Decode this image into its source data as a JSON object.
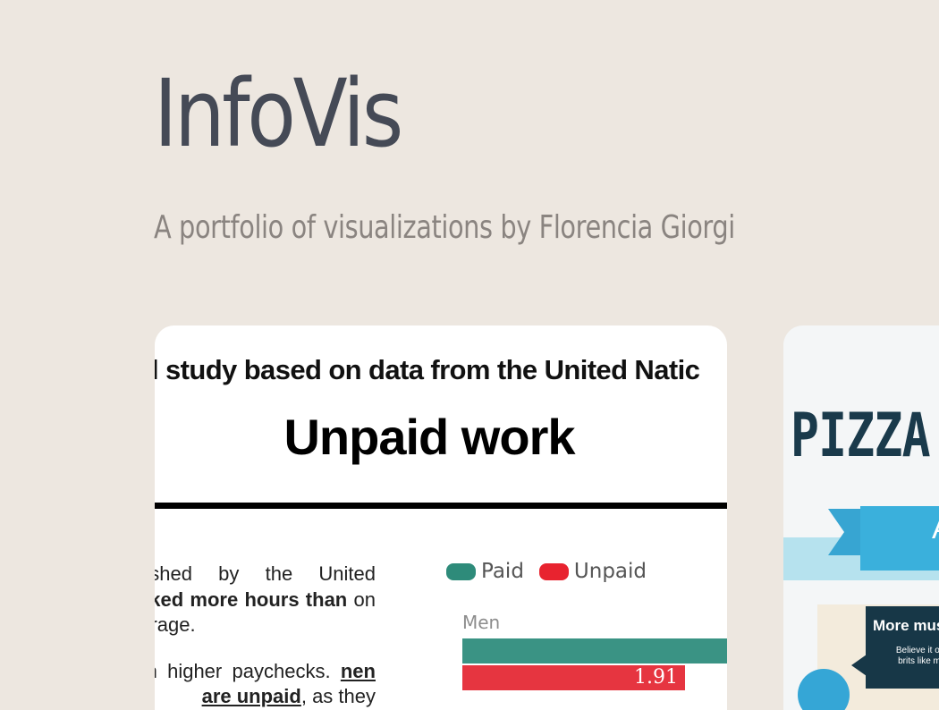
{
  "header": {
    "title": "InfoVis",
    "subtitle": "A portfolio of visualizations by Florencia Giorgi"
  },
  "cards": [
    {
      "banner": "l study based on data from the United Natic",
      "headline": "Unpaid work",
      "body": {
        "line1": "ublished by the United",
        "line2": "vorked more hours than",
        "line3": "on average.",
        "line4": "ıean higher paychecks.",
        "line5_bold": "nen are unpaid",
        "line5_tail": ", as they"
      },
      "chart": {
        "legend": [
          {
            "label": "Paid",
            "color": "#2e8b7a"
          },
          {
            "label": "Unpaid",
            "color": "#e8232f"
          }
        ],
        "category": "Men",
        "unpaid_value": "1.91"
      }
    },
    {
      "title": "PIZZA",
      "ribbon_text": "A",
      "panel_title": "More mus",
      "panel_text_line1": "Believe it or",
      "panel_text_line2": "brits like m"
    }
  ],
  "chart_data": {
    "type": "bar",
    "categories": [
      "Men"
    ],
    "series": [
      {
        "name": "Paid",
        "values": [
          null
        ]
      },
      {
        "name": "Unpaid",
        "values": [
          1.91
        ]
      }
    ]
  }
}
